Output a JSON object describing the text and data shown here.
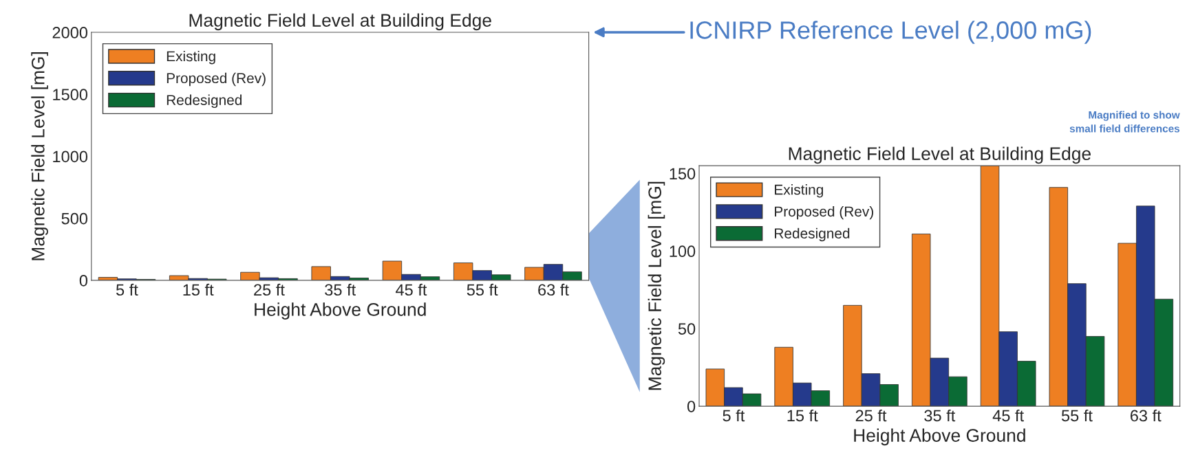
{
  "chart_data": [
    {
      "type": "bar",
      "title": "Magnetic Field Level at Building Edge",
      "xlabel": "Height Above Ground",
      "ylabel": "Magnetic Field Level [mG]",
      "categories": [
        "5 ft",
        "15 ft",
        "25 ft",
        "35 ft",
        "45 ft",
        "55 ft",
        "63 ft"
      ],
      "series": [
        {
          "name": "Existing",
          "color": "#ee7f22",
          "values": [
            24,
            38,
            65,
            111,
            155,
            141,
            105
          ]
        },
        {
          "name": "Proposed (Rev)",
          "color": "#253a8c",
          "values": [
            12,
            15,
            21,
            31,
            48,
            79,
            129
          ]
        },
        {
          "name": "Redesigned",
          "color": "#0b6b35",
          "values": [
            8,
            10,
            14,
            19,
            29,
            45,
            69
          ]
        }
      ],
      "ylim": [
        0,
        2000
      ],
      "yticks": [
        0,
        500,
        1000,
        1500,
        2000
      ],
      "legend": "top left",
      "annotations": [
        "ICNIRP Reference Level (2,000 mG)"
      ]
    },
    {
      "type": "bar",
      "title": "Magnetic Field Level at Building Edge",
      "xlabel": "Height Above Ground",
      "ylabel": "Magnetic Field Level [mG]",
      "categories": [
        "5 ft",
        "15 ft",
        "25 ft",
        "35 ft",
        "45 ft",
        "55 ft",
        "63 ft"
      ],
      "series": [
        {
          "name": "Existing",
          "color": "#ee7f22",
          "values": [
            24,
            38,
            65,
            111,
            155,
            141,
            105
          ]
        },
        {
          "name": "Proposed (Rev)",
          "color": "#253a8c",
          "values": [
            12,
            15,
            21,
            31,
            48,
            79,
            129
          ]
        },
        {
          "name": "Redesigned",
          "color": "#0b6b35",
          "values": [
            8,
            10,
            14,
            19,
            29,
            45,
            69
          ]
        }
      ],
      "ylim": [
        0,
        155
      ],
      "yticks": [
        0,
        50,
        100,
        150
      ],
      "legend": "top left",
      "annotations": [
        "Magnified to show\nsmall field differences"
      ]
    }
  ]
}
